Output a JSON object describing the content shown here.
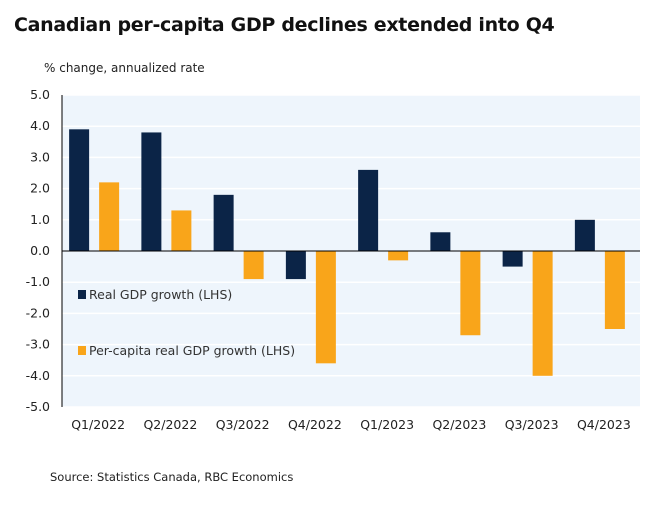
{
  "chart_data": {
    "type": "bar",
    "title": "Canadian per-capita GDP declines extended into Q4",
    "ylabel": "% change, annualized rate",
    "xlabel": "",
    "categories": [
      "Q1/2022",
      "Q2/2022",
      "Q3/2022",
      "Q4/2022",
      "Q1/2023",
      "Q2/2023",
      "Q3/2023",
      "Q4/2023"
    ],
    "series": [
      {
        "name": "Real GDP growth (LHS)",
        "color": "#0b2447",
        "values": [
          3.9,
          3.8,
          1.8,
          -0.9,
          2.6,
          0.6,
          -0.5,
          1.0
        ]
      },
      {
        "name": "Per-capita real GDP growth (LHS)",
        "color": "#f9a51a",
        "values": [
          2.2,
          1.3,
          -0.9,
          -3.6,
          -0.3,
          -2.7,
          -4.0,
          -2.5
        ]
      }
    ],
    "ylim": [
      -5,
      5
    ],
    "yticks": [
      "5.0",
      "4.0",
      "3.0",
      "2.0",
      "1.0",
      "0.0",
      "-1.0",
      "-2.0",
      "-3.0",
      "-4.0",
      "-5.0"
    ],
    "grid": true,
    "legend": "left-middle",
    "source": "Source: Statistics Canada, RBC Economics"
  }
}
